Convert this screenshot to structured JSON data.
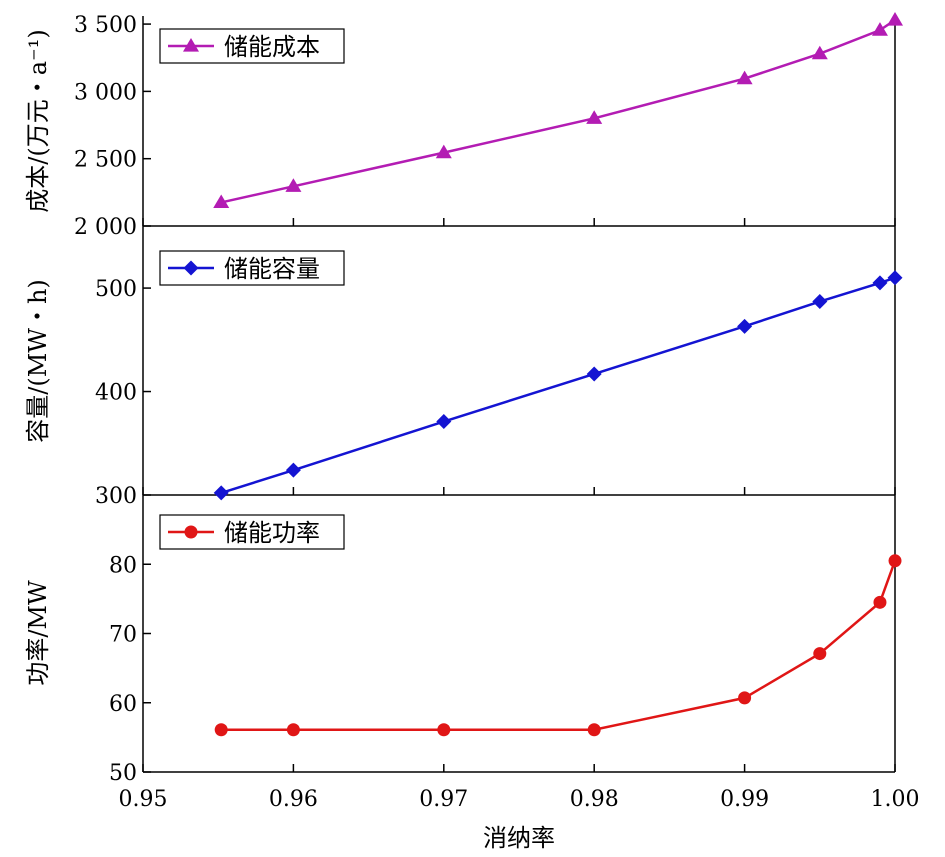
{
  "figure": {
    "xlabel": "消纳率",
    "x_tick_labels": [
      "0.95",
      "0.96",
      "0.97",
      "0.98",
      "0.99",
      "1.00"
    ]
  },
  "chart_data": [
    {
      "type": "line",
      "title": "",
      "xlabel": "消纳率",
      "ylabel": "成本/(万元・a⁻¹)",
      "xlim": [
        0.95,
        1.0
      ],
      "ylim": [
        2000,
        3500
      ],
      "y_ticks": [
        2000,
        2500,
        3000,
        3500
      ],
      "y_tick_labels": [
        "2 000",
        "2 500",
        "3 000",
        "3 500"
      ],
      "legend_position": "top-left",
      "series": [
        {
          "name": "储能成本",
          "color": "#b31cb3",
          "marker": "triangle",
          "x": [
            0.9552,
            0.96,
            0.97,
            0.98,
            0.99,
            0.995,
            0.999,
            1.0
          ],
          "y": [
            2175,
            2295,
            2545,
            2800,
            3095,
            3280,
            3455,
            3530
          ]
        }
      ]
    },
    {
      "type": "line",
      "title": "",
      "xlabel": "消纳率",
      "ylabel": "容量/(MW・h)",
      "xlim": [
        0.95,
        1.0
      ],
      "ylim": [
        300,
        550
      ],
      "y_ticks": [
        300,
        400,
        500
      ],
      "y_tick_labels": [
        "300",
        "400",
        "500"
      ],
      "legend_position": "top-left",
      "series": [
        {
          "name": "储能容量",
          "color": "#1414d2",
          "marker": "diamond",
          "x": [
            0.9552,
            0.96,
            0.97,
            0.98,
            0.99,
            0.995,
            0.999,
            1.0
          ],
          "y": [
            302,
            324,
            371,
            417,
            463,
            487,
            505,
            510
          ]
        }
      ]
    },
    {
      "type": "line",
      "title": "",
      "xlabel": "消纳率",
      "ylabel": "功率/MW",
      "xlim": [
        0.95,
        1.0
      ],
      "ylim": [
        50,
        90
      ],
      "y_ticks": [
        50,
        60,
        70,
        80
      ],
      "y_tick_labels": [
        "50",
        "60",
        "70",
        "80"
      ],
      "legend_position": "top-left",
      "series": [
        {
          "name": "储能功率",
          "color": "#e01616",
          "marker": "circle",
          "x": [
            0.9552,
            0.96,
            0.97,
            0.98,
            0.99,
            0.995,
            0.999,
            1.0
          ],
          "y": [
            56.1,
            56.1,
            56.1,
            56.1,
            60.7,
            67.1,
            74.5,
            80.5
          ]
        }
      ]
    }
  ]
}
